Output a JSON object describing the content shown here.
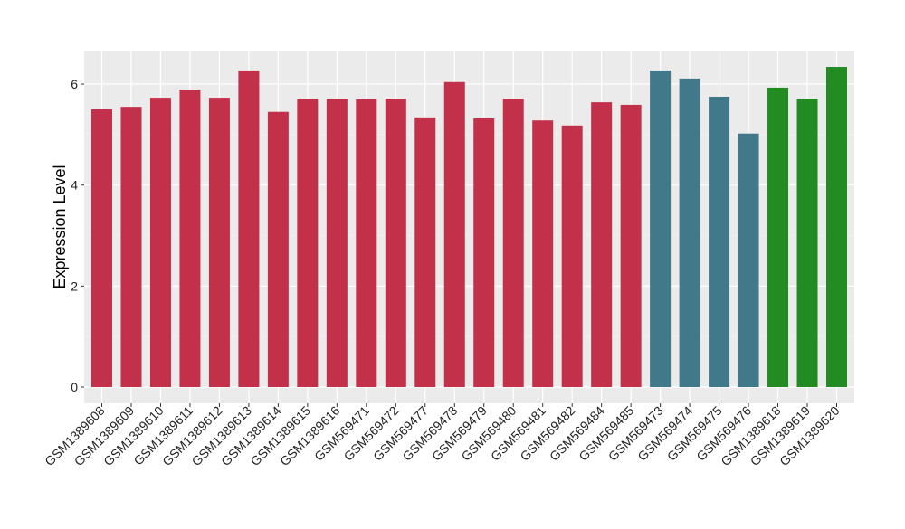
{
  "chart_data": {
    "type": "bar",
    "title": "",
    "xlabel": "",
    "ylabel": "Expression Level",
    "ylim": [
      0,
      6.66
    ],
    "yticks": [
      0,
      2,
      4,
      6
    ],
    "grid": true,
    "legend": "none",
    "categories": [
      "GSM1389608",
      "GSM1389609",
      "GSM1389610",
      "GSM1389611",
      "GSM1389612",
      "GSM1389613",
      "GSM1389614",
      "GSM1389615",
      "GSM1389616",
      "GSM569471",
      "GSM569472",
      "GSM569477",
      "GSM569478",
      "GSM569479",
      "GSM569480",
      "GSM569481",
      "GSM569482",
      "GSM569484",
      "GSM569485",
      "GSM569473",
      "GSM569474",
      "GSM569475",
      "GSM569476",
      "GSM1389618",
      "GSM1389619",
      "GSM1389620"
    ],
    "values": [
      5.5,
      5.55,
      5.73,
      5.89,
      5.73,
      6.27,
      5.45,
      5.71,
      5.71,
      5.7,
      5.71,
      5.34,
      6.04,
      5.32,
      5.71,
      5.28,
      5.18,
      5.64,
      5.59,
      6.27,
      6.11,
      5.75,
      5.02,
      5.93,
      5.71,
      6.34
    ],
    "groups": [
      0,
      0,
      0,
      0,
      0,
      0,
      0,
      0,
      0,
      0,
      0,
      0,
      0,
      0,
      0,
      0,
      0,
      0,
      0,
      1,
      1,
      1,
      1,
      2,
      2,
      2
    ],
    "group_colors": [
      "#C3304A",
      "#41788A",
      "#228B22"
    ]
  }
}
